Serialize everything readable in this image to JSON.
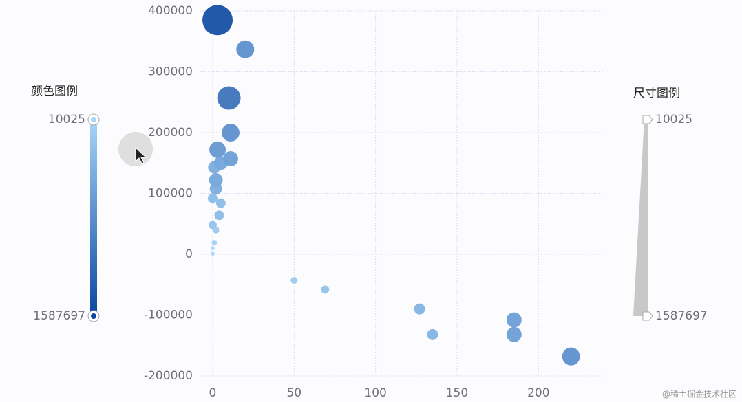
{
  "chart_data": {
    "type": "scatter",
    "x": [
      3,
      20,
      10,
      11,
      3,
      11,
      5,
      1,
      2,
      2,
      0,
      5,
      4,
      0,
      2,
      1,
      0,
      0,
      50,
      69,
      127,
      135,
      185,
      185,
      220
    ],
    "series": [
      {
        "values": [
          385000,
          337000,
          257000,
          200000,
          172000,
          157000,
          150000,
          143000,
          122000,
          108000,
          92000,
          84000,
          64000,
          48000,
          40000,
          19000,
          10000,
          1000,
          -43000,
          -58000,
          -90000,
          -132000,
          -108000,
          -132000,
          -168000
        ],
        "sizes": [
          1587697,
          840375,
          1172515,
          840375,
          757340,
          674305,
          591270,
          508235,
          591270,
          508235,
          342165,
          342165,
          342165,
          259130,
          176095,
          93060,
          10025,
          10025,
          176095,
          259130,
          425200,
          425200,
          674305,
          674305,
          840375
        ]
      }
    ],
    "xlim": [
      -8,
      240
    ],
    "xticks": [
      0,
      50,
      100,
      150,
      200
    ],
    "ylim": [
      -200000,
      400000
    ],
    "yticks": [
      -200000,
      -100000,
      0,
      100000,
      200000,
      300000,
      400000
    ],
    "grid": true,
    "visual_map": {
      "color_title": "颜色图例",
      "size_title": "尺寸图例",
      "min": 10025,
      "max": 1587697,
      "colors": [
        "#a6d6f8",
        "#0b47a0"
      ]
    },
    "watermark": "@稀土掘金技术社区"
  }
}
